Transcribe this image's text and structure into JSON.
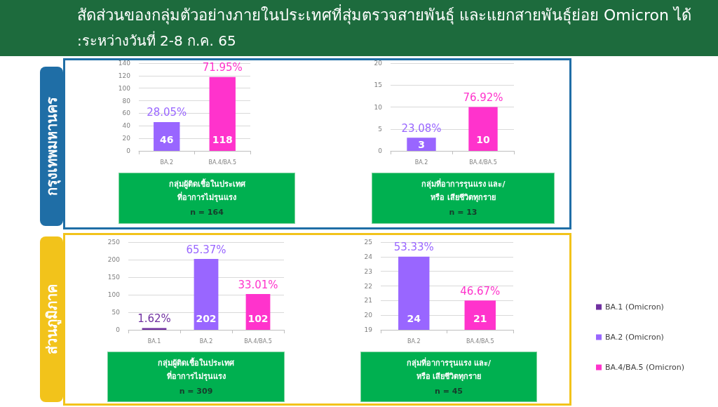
{
  "chart_data": [
    {
      "type": "bar",
      "title": "สัดส่วนของกลุ่มตัวอย่างภายในประเทศที่สุ่มตรวจสายพันธุ์ และแยกสายพันธุ์ย่อย Omicron ได้",
      "subtitle": ":ระหว่างวันที่ 2-8 ก.ค. 65",
      "ylabel": "กรุงเทพมหานคร",
      "xlabel": "กลุ่มผู้ติดเชื้อในประเทศ\nที่อาการไม่รุนแรง",
      "categories": [
        "BA.2",
        "BA.4/BA.5"
      ],
      "values": [
        46,
        118
      ],
      "colors": [
        "#9966ff",
        "#ff33cc"
      ],
      "data_labels": true,
      "annotations": [
        {
          "text": "28.05%",
          "x": "BA.2",
          "y": 46
        },
        {
          "text": "71.95%",
          "x": "BA.4/BA.5",
          "y": 118
        },
        "n = 164"
      ],
      "ylim": [
        0,
        140
      ],
      "yticks": [
        0,
        20,
        40,
        60,
        80,
        100,
        120,
        140
      ],
      "grid": "y"
    },
    {
      "type": "bar",
      "xlabel": "กลุ่มที่อาการรุนแรง และ/\nหรือ เสียชีวิตทุกราย",
      "categories": [
        "BA.2",
        "BA.4/BA.5"
      ],
      "values": [
        3,
        10
      ],
      "colors": [
        "#9966ff",
        "#ff33cc"
      ],
      "data_labels": true,
      "annotations": [
        {
          "text": "23.08%",
          "x": "BA.2",
          "y": 3
        },
        {
          "text": "76.92%",
          "x": "BA.4/BA.5",
          "y": 10
        },
        "n = 13"
      ],
      "ylim": [
        0,
        20
      ],
      "yticks": [
        0,
        5,
        10,
        15,
        20
      ],
      "grid": "y"
    },
    {
      "type": "bar",
      "ylabel": "ส่วนภูมิภาค",
      "xlabel": "กลุ่มผู้ติดเชื้อในประเทศ\nที่อาการไม่รุนแรง",
      "categories": [
        "BA.1",
        "BA.2",
        "BA.4/BA.5"
      ],
      "values": [
        5,
        202,
        102
      ],
      "colors": [
        "#7030a0",
        "#9966ff",
        "#ff33cc"
      ],
      "value_labels": [
        null,
        "202",
        "102"
      ],
      "annotations": [
        {
          "text": "1.62%",
          "x": "BA.1",
          "y": 5
        },
        {
          "text": "65.37%",
          "x": "BA.2",
          "y": 202
        },
        {
          "text": "33.01%",
          "x": "BA.4/BA.5",
          "y": 102
        },
        "n = 309"
      ],
      "ylim": [
        0,
        250
      ],
      "yticks": [
        0,
        50,
        100,
        150,
        200,
        250
      ],
      "grid": "y"
    },
    {
      "type": "bar",
      "xlabel": "กลุ่มที่อาการรุนแรง และ/\nหรือ เสียชีวิตทุกราย",
      "categories": [
        "BA.2",
        "BA.4/BA.5"
      ],
      "series": [
        {
          "name": "BA.1 (Omicron)",
          "color": "#7030a0",
          "values": [
            null,
            null
          ]
        },
        {
          "name": "BA.2 (Omicron)",
          "color": "#9966ff",
          "values": [
            24,
            null
          ]
        },
        {
          "name": "BA.4/BA.5 (Omicron)",
          "color": "#ff33cc",
          "values": [
            null,
            21
          ]
        }
      ],
      "stacked": true,
      "data_labels": true,
      "legend": "right",
      "annotations": [
        {
          "text": "53.33%",
          "x": "BA.2",
          "y": 24
        },
        {
          "text": "46.67%",
          "x": "BA.4/BA.5",
          "y": 21
        },
        "n = 45"
      ],
      "ylim": [
        19,
        25
      ],
      "yticks": [
        19,
        20,
        21,
        22,
        23,
        24,
        25
      ],
      "grid": "y"
    }
  ]
}
